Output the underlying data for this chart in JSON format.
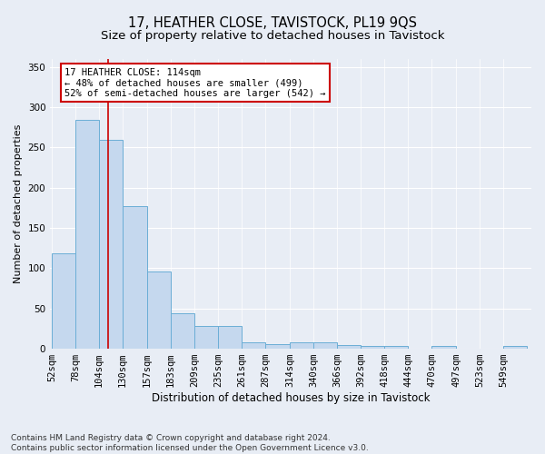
{
  "title": "17, HEATHER CLOSE, TAVISTOCK, PL19 9QS",
  "subtitle": "Size of property relative to detached houses in Tavistock",
  "xlabel": "Distribution of detached houses by size in Tavistock",
  "ylabel": "Number of detached properties",
  "bar_edges": [
    52,
    78,
    104,
    130,
    157,
    183,
    209,
    235,
    261,
    287,
    314,
    340,
    366,
    392,
    418,
    444,
    470,
    497,
    523,
    549,
    575
  ],
  "bar_heights": [
    118,
    284,
    260,
    177,
    96,
    44,
    28,
    28,
    8,
    6,
    8,
    8,
    5,
    4,
    4,
    0,
    4,
    0,
    0,
    3
  ],
  "bar_color": "#c5d8ee",
  "bar_edge_color": "#6baed6",
  "vline_x": 114,
  "vline_color": "#cc0000",
  "annotation_line1": "17 HEATHER CLOSE: 114sqm",
  "annotation_line2": "← 48% of detached houses are smaller (499)",
  "annotation_line3": "52% of semi-detached houses are larger (542) →",
  "annotation_box_color": "#ffffff",
  "annotation_box_edge": "#cc0000",
  "ylim": [
    0,
    360
  ],
  "yticks": [
    0,
    50,
    100,
    150,
    200,
    250,
    300,
    350
  ],
  "background_color": "#e8edf5",
  "plot_bg_color": "#e8edf5",
  "footer": "Contains HM Land Registry data © Crown copyright and database right 2024.\nContains public sector information licensed under the Open Government Licence v3.0.",
  "title_fontsize": 10.5,
  "subtitle_fontsize": 9.5,
  "xlabel_fontsize": 8.5,
  "ylabel_fontsize": 8,
  "tick_fontsize": 7.5,
  "footer_fontsize": 6.5
}
